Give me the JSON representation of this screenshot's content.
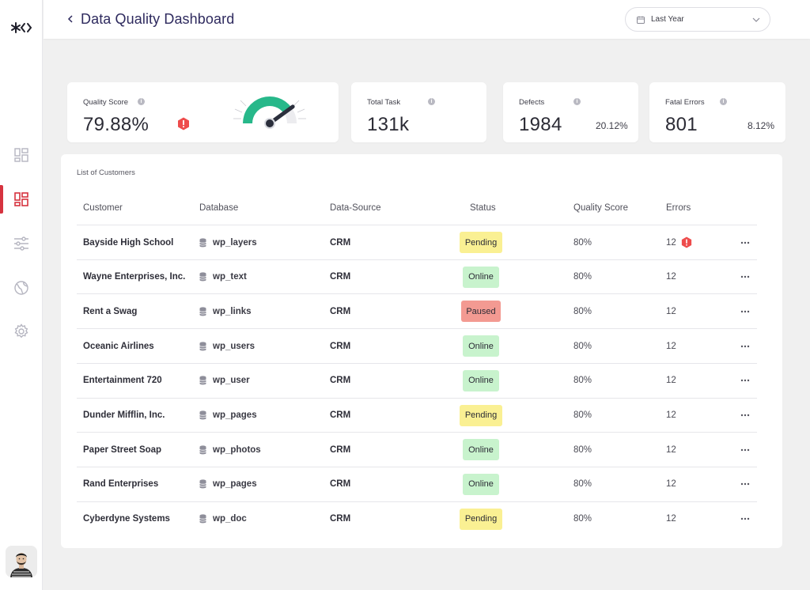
{
  "header": {
    "title": "Data Quality Dashboard",
    "date_range": "Last Year"
  },
  "sidebar": {
    "items": [
      {
        "name": "overview",
        "icon": "grid-outline-icon",
        "active": false
      },
      {
        "name": "dashboard",
        "icon": "grid-icon",
        "active": true
      },
      {
        "name": "filters",
        "icon": "sliders-icon",
        "active": false
      },
      {
        "name": "globe",
        "icon": "globe-icon",
        "active": false
      },
      {
        "name": "settings",
        "icon": "gear-icon",
        "active": false
      }
    ]
  },
  "stats": {
    "quality": {
      "label": "Quality Score",
      "value": "79.88%",
      "gauge_level": 0.8
    },
    "total": {
      "label": "Total Task",
      "value": "131k"
    },
    "defects": {
      "label": "Defects",
      "value": "1984",
      "pct": "20.12%"
    },
    "fatal": {
      "label": "Fatal Errors",
      "value": "801",
      "pct": "8.12%"
    }
  },
  "table": {
    "title": "List of Customers",
    "columns": [
      "Customer",
      "Database",
      "Data-Source",
      "Status",
      "Quality Score",
      "Errors"
    ],
    "rows": [
      {
        "customer": "Bayside High School",
        "database": "wp_layers",
        "source": "CRM",
        "status": "Pending",
        "score": "80%",
        "errors": "12",
        "alert": true
      },
      {
        "customer": "Wayne Enterprises, Inc.",
        "database": "wp_text",
        "source": "CRM",
        "status": "Online",
        "score": "80%",
        "errors": "12"
      },
      {
        "customer": "Rent a Swag",
        "database": "wp_links",
        "source": "CRM",
        "status": "Paused",
        "score": "80%",
        "errors": "12"
      },
      {
        "customer": "Oceanic Airlines",
        "database": "wp_users",
        "source": "CRM",
        "status": "Online",
        "score": "80%",
        "errors": "12"
      },
      {
        "customer": "Entertainment 720",
        "database": "wp_user",
        "source": "CRM",
        "status": "Online",
        "score": "80%",
        "errors": "12"
      },
      {
        "customer": "Dunder Mifflin, Inc.",
        "database": "wp_pages",
        "source": "CRM",
        "status": "Pending",
        "score": "80%",
        "errors": "12"
      },
      {
        "customer": "Paper Street Soap",
        "database": "wp_photos",
        "source": "CRM",
        "status": "Online",
        "score": "80%",
        "errors": "12"
      },
      {
        "customer": "Rand Enterprises",
        "database": "wp_pages",
        "source": "CRM",
        "status": "Online",
        "score": "80%",
        "errors": "12"
      },
      {
        "customer": "Cyberdyne Systems",
        "database": "wp_doc",
        "source": "CRM",
        "status": "Pending",
        "score": "80%",
        "errors": "12"
      }
    ]
  },
  "colors": {
    "accent": "#d6333f",
    "title": "#2e2a5e",
    "pending": "#faf093",
    "online": "#c8f3cd",
    "paused": "#f39a92",
    "gauge": "#27b88a"
  }
}
